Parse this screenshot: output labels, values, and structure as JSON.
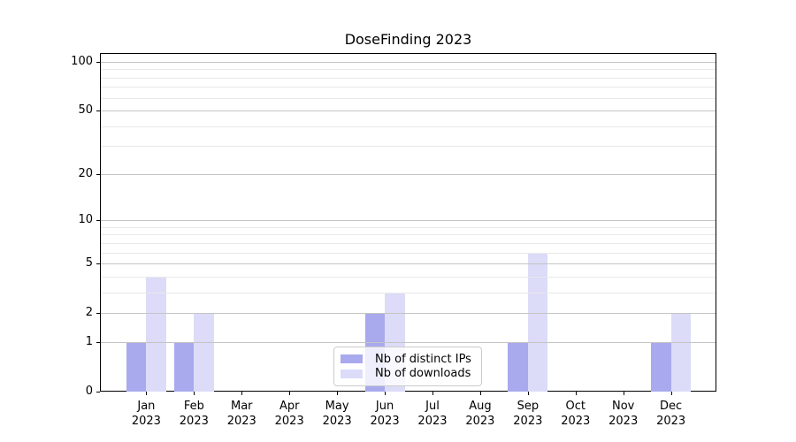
{
  "figure": {
    "title": "DoseFinding 2023"
  },
  "chart_data": {
    "type": "bar",
    "title": "DoseFinding 2023",
    "xlabel": "",
    "ylabel": "",
    "categories": [
      "Jan",
      "Feb",
      "Mar",
      "Apr",
      "May",
      "Jun",
      "Jul",
      "Aug",
      "Sep",
      "Oct",
      "Nov",
      "Dec"
    ],
    "category_year": "2023",
    "series": [
      {
        "name": "Nb of distinct IPs",
        "color": "#a9a9ee",
        "values": [
          1,
          1,
          0,
          0,
          0,
          2,
          0,
          0,
          1,
          0,
          0,
          1
        ]
      },
      {
        "name": "Nb of downloads",
        "color": "#dcdcf8",
        "values": [
          4,
          2,
          0,
          0,
          0,
          3,
          0,
          0,
          6,
          0,
          0,
          2
        ]
      }
    ],
    "yscale": "log1p",
    "yticks": [
      0,
      1,
      2,
      5,
      10,
      20,
      50,
      100
    ],
    "yticks_minor": [
      3,
      4,
      6,
      7,
      8,
      9,
      30,
      40,
      60,
      70,
      80,
      90
    ],
    "ylim": [
      0,
      113
    ],
    "grid": "both",
    "legend_position": "lower-center"
  },
  "colors": {
    "grid_major": "#c4c4c4",
    "grid_minor": "#e9e9e9",
    "spine": "#000000",
    "legend_border": "#cccccc"
  }
}
